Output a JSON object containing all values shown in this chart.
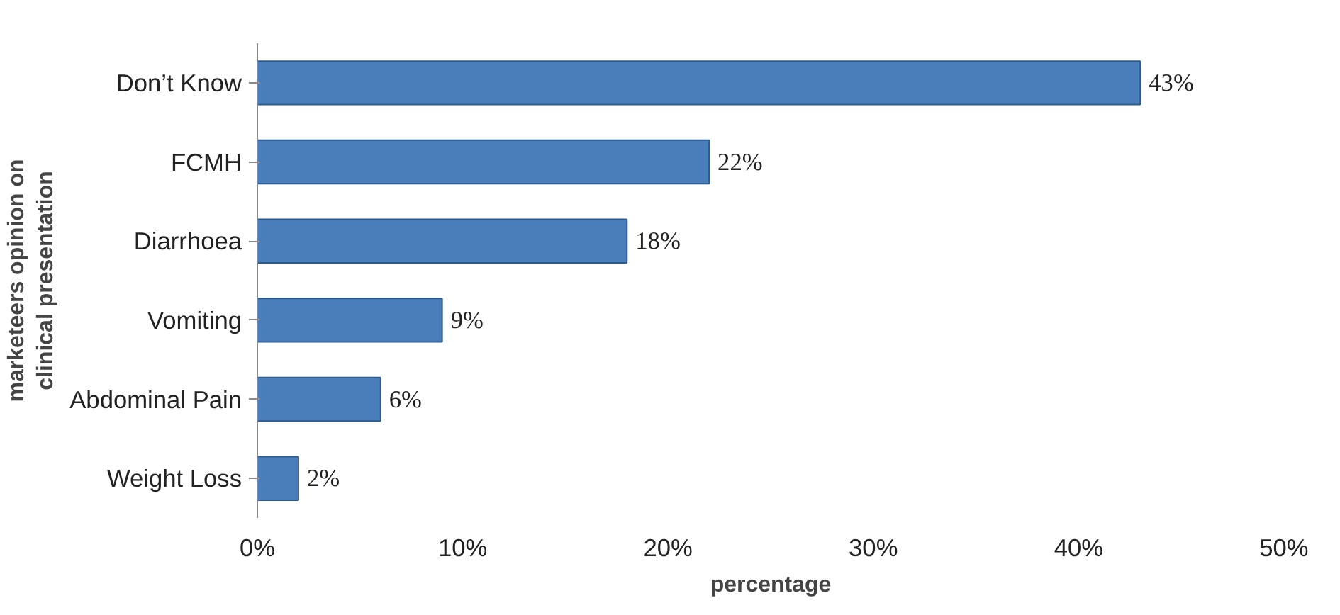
{
  "chart_data": {
    "type": "bar",
    "orientation": "horizontal",
    "xlabel": "percentage",
    "ylabel": "marketeers opinion on clinical presentation",
    "categories": [
      "Don’t Know",
      "FCMH",
      "Diarrhoea",
      "Vomiting",
      "Abdominal Pain",
      "Weight Loss"
    ],
    "values": [
      43,
      22,
      18,
      9,
      6,
      2
    ],
    "color": "#4a7ebb",
    "value_labels": [
      "43%",
      "22%",
      "18%",
      "9%",
      "6%",
      "2%"
    ],
    "xlim": [
      0,
      50
    ],
    "xticks": [
      {
        "value": 0,
        "label": "0%"
      },
      {
        "value": 10,
        "label": "10%"
      },
      {
        "value": 20,
        "label": "20%"
      },
      {
        "value": 30,
        "label": "30%"
      },
      {
        "value": 40,
        "label": "40%"
      },
      {
        "value": 50,
        "label": "50%"
      }
    ]
  }
}
